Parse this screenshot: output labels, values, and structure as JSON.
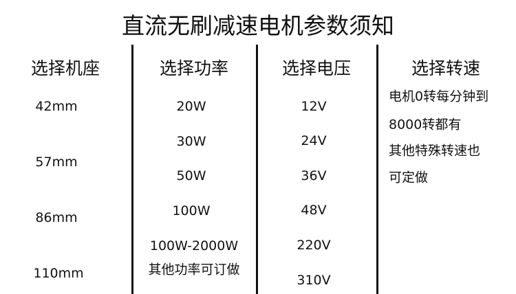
{
  "title": "直流无刷减速电机参数须知",
  "columns": [
    {
      "header": "选择机座",
      "items": [
        "42mm",
        "57mm",
        "86mm",
        "110mm"
      ]
    },
    {
      "header": "选择功率",
      "items": [
        "20W",
        "30W",
        "50W",
        "100W",
        "100W-2000W",
        "其他功率可订做"
      ]
    },
    {
      "header": "选择电压",
      "items": [
        "12V",
        "24V",
        "36V",
        "48V",
        "220V",
        "310V"
      ]
    },
    {
      "header": "选择转速",
      "lines": [
        "电机0转每分钟到",
        "8000转都有",
        "其他特殊转速也",
        "可定做"
      ]
    }
  ]
}
